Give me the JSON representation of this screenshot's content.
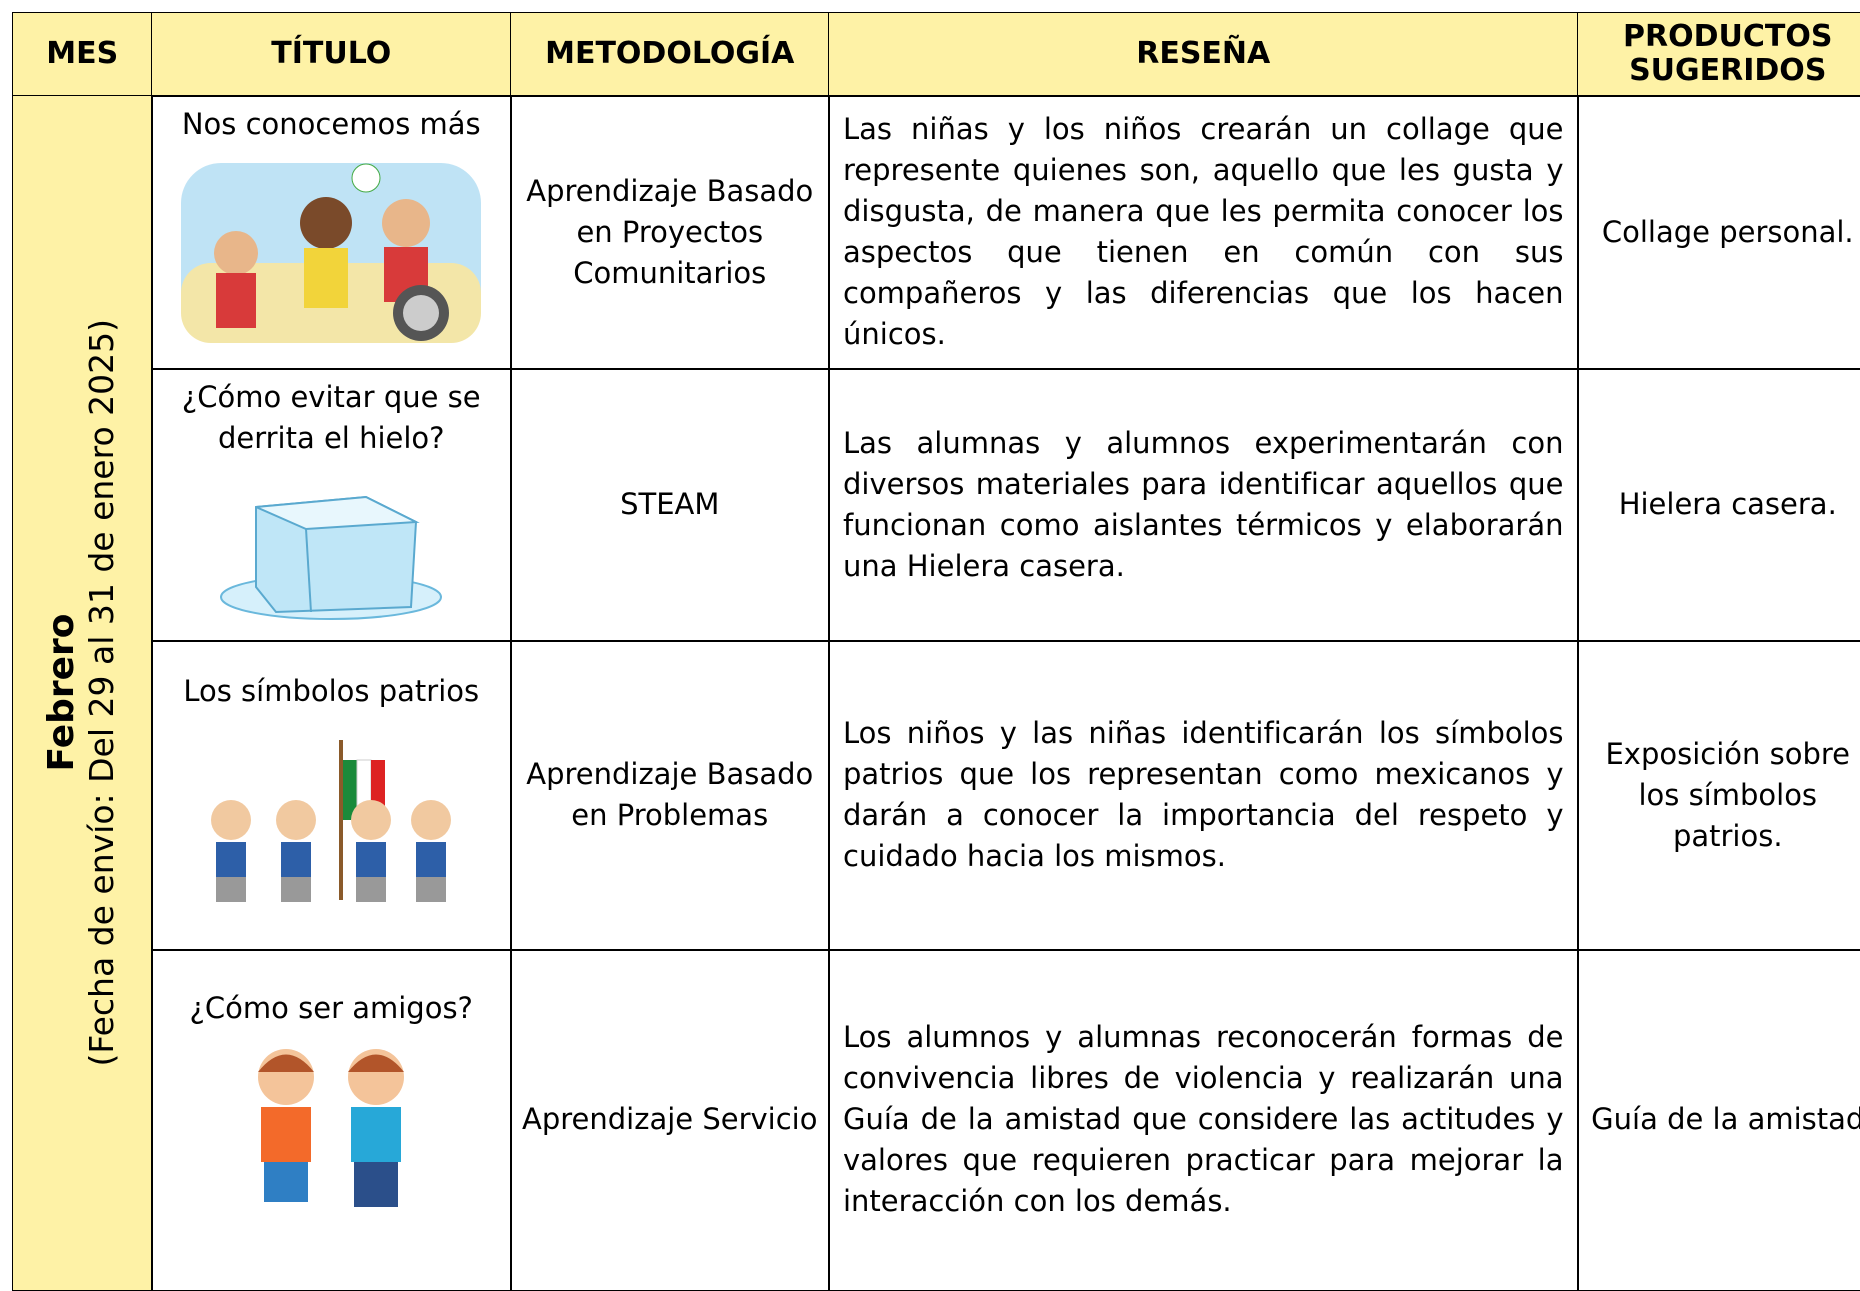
{
  "table": {
    "header": [
      "MES",
      "TÍTULO",
      "METODOLOGÍA",
      "RESEÑA",
      "PRODUCTOS SUGERIDOS"
    ],
    "month": {
      "name": "Febrero",
      "note": "(Fecha de envío: Del 29 al 31 de enero 2025)"
    },
    "rows": [
      {
        "title": "Nos conocemos más",
        "method": "Aprendizaje Basado en Proyectos Comunitarios",
        "summary": "Las niñas y los niños crearán un collage que represente quienes son, aquello que les gusta y disgusta, de manera que les permita conocer los aspectos que tienen en común con sus compañeros y las diferencias que los hacen únicos.",
        "product": "Collage personal."
      },
      {
        "title": "¿Cómo evitar que se derrita el hielo?",
        "method": "STEAM",
        "summary": "Las alumnas y alumnos experimentarán con diversos materiales para identificar aquellos que funcionan como aislantes térmicos y elaborarán una Hielera casera.",
        "product": "Hielera casera."
      },
      {
        "title": "Los símbolos patrios",
        "method": "Aprendizaje Basado en Problemas",
        "summary": "Los niños y las niñas identificarán los símbolos patrios que los representan como mexicanos y darán a conocer la importancia del respeto y cuidado hacia los mismos.",
        "product": "Exposición sobre los símbolos patrios."
      },
      {
        "title": "¿Cómo ser amigos?",
        "method": "Aprendizaje Servicio",
        "summary": "Los alumnos y alumnas reconocerán formas de convivencia libres de violencia y realizarán una Guía de la amistad que considere las actitudes y valores que requieren practicar para mejorar la interacción con los demás.",
        "product": "Guía de la amistad"
      }
    ]
  }
}
